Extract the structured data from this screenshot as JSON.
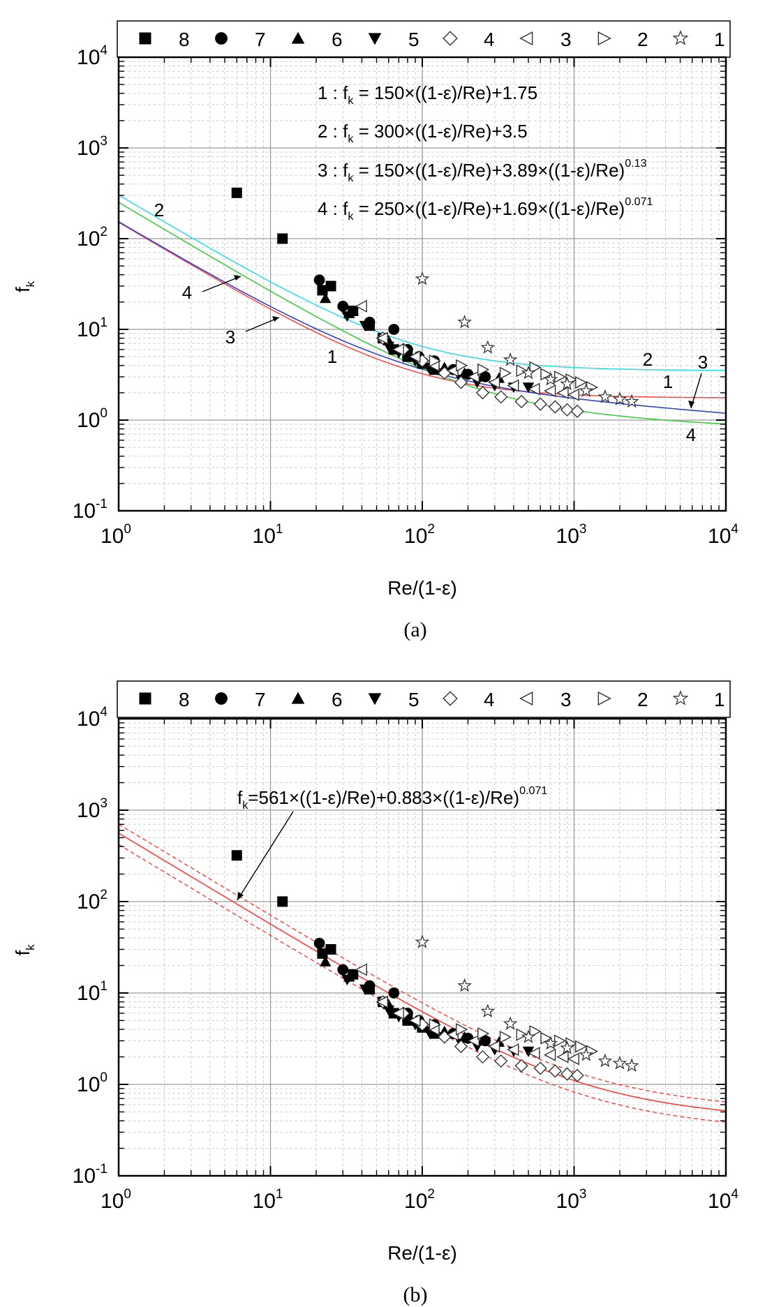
{
  "chart_data": [
    {
      "type": "scatter",
      "panel_label": "(a)",
      "xlabel": "Re/(1-ε)",
      "ylabel": "f",
      "ylabel_sub": "k",
      "x_scale": "log",
      "y_scale": "log",
      "xlim": [
        1,
        10000
      ],
      "ylim": [
        0.1,
        10000
      ],
      "grid": true,
      "legend_position": "top",
      "legend": [
        "8",
        "7",
        "6",
        "5",
        "4",
        "3",
        "2",
        "1"
      ],
      "equations": [
        {
          "prefix": "1 : f",
          "sub": "k",
          "body": " = 150×((1-ε)/Re)+1.75",
          "sup": ""
        },
        {
          "prefix": "2 : f",
          "sub": "k",
          "body": " = 300×((1-ε)/Re)+3.5",
          "sup": ""
        },
        {
          "prefix": "3 : f",
          "sub": "k",
          "body": " = 150×((1-ε)/Re)+3.89×((1-ε)/Re)",
          "sup": "0.13"
        },
        {
          "prefix": "4 : f",
          "sub": "k",
          "body": " = 250×((1-ε)/Re)+1.69×((1-ε)/Re)",
          "sup": "0.071"
        }
      ],
      "curves": [
        {
          "label": "1",
          "color": "#ff4b4b",
          "a": 150,
          "b": 1.75,
          "n": 0
        },
        {
          "label": "2",
          "color": "#33dde6",
          "a": 300,
          "b": 3.5,
          "n": 0
        },
        {
          "label": "3",
          "color": "#3344cc",
          "a": 150,
          "b": 3.89,
          "n": 0.13
        },
        {
          "label": "4",
          "color": "#40cc40",
          "a": 250,
          "b": 1.69,
          "n": 0.071
        }
      ],
      "curve_labels": [
        {
          "text": "2",
          "x": 1.7,
          "y": 180
        },
        {
          "text": "4",
          "x": 0.82,
          "y": 0.62
        },
        {
          "text": "3",
          "x": 0.78,
          "y": 0.25
        },
        {
          "text": "1",
          "x": 1.35,
          "y": -0.2
        }
      ],
      "curve_labels_right": [
        {
          "text": "2",
          "x": 2.6,
          "y": 0.0
        },
        {
          "text": "1",
          "x": 3.35,
          "y": -0.25
        },
        {
          "text": "3",
          "x": 3.75,
          "y": 0.0
        },
        {
          "text": "4",
          "x": 3.65,
          "y": -0.62
        }
      ]
    },
    {
      "type": "scatter",
      "panel_label": "(b)",
      "xlabel": "Re/(1-ε)",
      "ylabel": "f",
      "ylabel_sub": "k",
      "x_scale": "log",
      "y_scale": "log",
      "xlim": [
        1,
        10000
      ],
      "ylim": [
        0.1,
        10000
      ],
      "grid": true,
      "legend_position": "top",
      "legend": [
        "8",
        "7",
        "6",
        "5",
        "4",
        "3",
        "2",
        "1"
      ],
      "equation": {
        "prefix": "f",
        "sub": "k",
        "body": "=561×((1-ε)/Re)+0.883×((1-ε)/Re)",
        "sup": "0.071"
      },
      "fit": {
        "color": "#ff3b3b",
        "a": 561,
        "b": 0.883,
        "n": 0.071,
        "band": 0.25
      }
    }
  ],
  "series": [
    {
      "name": "8",
      "marker": "square",
      "points": [
        [
          6,
          320
        ],
        [
          12,
          100
        ],
        [
          22,
          27
        ],
        [
          25,
          30
        ],
        [
          35,
          16
        ],
        [
          45,
          11
        ],
        [
          55,
          8
        ],
        [
          65,
          6
        ],
        [
          80,
          5
        ],
        [
          100,
          4.2
        ],
        [
          120,
          3.6
        ]
      ]
    },
    {
      "name": "7",
      "marker": "circle",
      "points": [
        [
          21,
          35
        ],
        [
          30,
          18
        ],
        [
          45,
          12
        ],
        [
          65,
          10
        ],
        [
          80,
          6
        ],
        [
          95,
          5
        ],
        [
          120,
          4.5
        ],
        [
          160,
          3.6
        ],
        [
          200,
          3.2
        ],
        [
          260,
          3.0
        ]
      ]
    },
    {
      "name": "6",
      "marker": "triangle-up",
      "points": [
        [
          23,
          22
        ],
        [
          33,
          15
        ],
        [
          45,
          11
        ],
        [
          60,
          7.5
        ],
        [
          80,
          5.5
        ],
        [
          100,
          4.5
        ],
        [
          140,
          3.8
        ],
        [
          190,
          3.3
        ],
        [
          250,
          3.0
        ],
        [
          320,
          2.9
        ]
      ]
    },
    {
      "name": "5",
      "marker": "triangle-down",
      "points": [
        [
          32,
          14
        ],
        [
          42,
          11
        ],
        [
          60,
          6.5
        ],
        [
          70,
          5.5
        ],
        [
          90,
          4.5
        ],
        [
          110,
          3.8
        ],
        [
          140,
          3.3
        ],
        [
          180,
          2.8
        ],
        [
          230,
          2.6
        ],
        [
          300,
          2.4
        ],
        [
          400,
          2.3
        ],
        [
          500,
          2.3
        ]
      ]
    },
    {
      "name": "4",
      "marker": "diamond",
      "points": [
        [
          55,
          8
        ],
        [
          75,
          6
        ],
        [
          100,
          4.5
        ],
        [
          140,
          3.3
        ],
        [
          180,
          2.6
        ],
        [
          250,
          2.0
        ],
        [
          330,
          1.8
        ],
        [
          450,
          1.6
        ],
        [
          600,
          1.5
        ],
        [
          750,
          1.4
        ],
        [
          900,
          1.3
        ],
        [
          1050,
          1.25
        ]
      ]
    },
    {
      "name": "3",
      "marker": "triangle-left",
      "points": [
        [
          40,
          18
        ],
        [
          55,
          8
        ],
        [
          70,
          6
        ],
        [
          90,
          5
        ],
        [
          120,
          4
        ],
        [
          160,
          3.5
        ],
        [
          220,
          3
        ],
        [
          300,
          2.6
        ],
        [
          400,
          2.4
        ],
        [
          550,
          2.2
        ],
        [
          700,
          2.1
        ],
        [
          850,
          2.0
        ],
        [
          1000,
          1.9
        ]
      ]
    },
    {
      "name": "2",
      "marker": "triangle-right",
      "points": [
        [
          120,
          4.5
        ],
        [
          180,
          4
        ],
        [
          250,
          3.6
        ],
        [
          350,
          3.3
        ],
        [
          450,
          3.5
        ],
        [
          550,
          3.8
        ],
        [
          650,
          3.2
        ],
        [
          800,
          3.0
        ],
        [
          950,
          2.8
        ],
        [
          1100,
          2.6
        ],
        [
          1300,
          2.3
        ]
      ]
    },
    {
      "name": "1",
      "marker": "star",
      "points": [
        [
          100,
          36
        ],
        [
          190,
          12
        ],
        [
          270,
          6.3
        ],
        [
          380,
          4.6
        ],
        [
          500,
          3.3
        ],
        [
          700,
          2.8
        ],
        [
          900,
          2.5
        ],
        [
          1200,
          2.1
        ],
        [
          1600,
          1.8
        ],
        [
          2000,
          1.7
        ],
        [
          2400,
          1.6
        ]
      ]
    }
  ]
}
